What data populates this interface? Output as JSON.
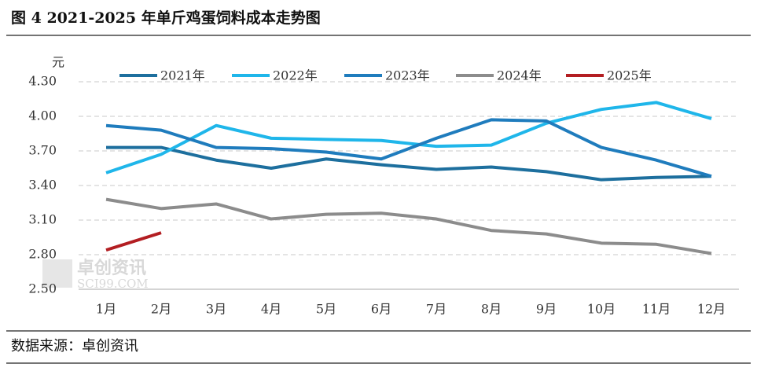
{
  "chart_data": {
    "type": "line",
    "title": "图 4 2021-2025 年单斤鸡蛋饲料成本走势图",
    "y_unit": "元",
    "source": "数据来源：卓创资讯",
    "watermark": [
      "卓创资讯",
      "SCI99.COM"
    ],
    "categories": [
      "1月",
      "2月",
      "3月",
      "4月",
      "5月",
      "6月",
      "7月",
      "8月",
      "9月",
      "10月",
      "11月",
      "12月"
    ],
    "series": [
      {
        "name": "2021年",
        "color": "#1d6f9e",
        "values": [
          3.73,
          3.73,
          3.62,
          3.55,
          3.63,
          3.58,
          3.54,
          3.56,
          3.52,
          3.45,
          3.47,
          3.48
        ]
      },
      {
        "name": "2022年",
        "color": "#1fb6ea",
        "values": [
          3.51,
          3.67,
          3.92,
          3.81,
          3.8,
          3.79,
          3.74,
          3.75,
          3.94,
          4.06,
          4.12,
          3.98
        ]
      },
      {
        "name": "2023年",
        "color": "#1f7cbd",
        "values": [
          3.92,
          3.88,
          3.73,
          3.72,
          3.69,
          3.63,
          3.81,
          3.97,
          3.96,
          3.73,
          3.62,
          3.48
        ]
      },
      {
        "name": "2024年",
        "color": "#8c8c8c",
        "values": [
          3.28,
          3.2,
          3.24,
          3.11,
          3.15,
          3.16,
          3.11,
          3.01,
          2.98,
          2.9,
          2.89,
          2.81
        ]
      },
      {
        "name": "2025年",
        "color": "#b31e22",
        "values": [
          2.84,
          2.99,
          null,
          null,
          null,
          null,
          null,
          null,
          null,
          null,
          null,
          null
        ]
      }
    ],
    "ylim": [
      2.5,
      4.3
    ],
    "yticks": [
      {
        "value": 2.5,
        "label": "2.50"
      },
      {
        "value": 2.8,
        "label": "2.80"
      },
      {
        "value": 3.1,
        "label": "3.10"
      },
      {
        "value": 3.4,
        "label": "3.40"
      },
      {
        "value": 3.7,
        "label": "3.70"
      },
      {
        "value": 4.0,
        "label": "4.00"
      },
      {
        "value": 4.3,
        "label": "4.30"
      }
    ],
    "grid": true
  }
}
